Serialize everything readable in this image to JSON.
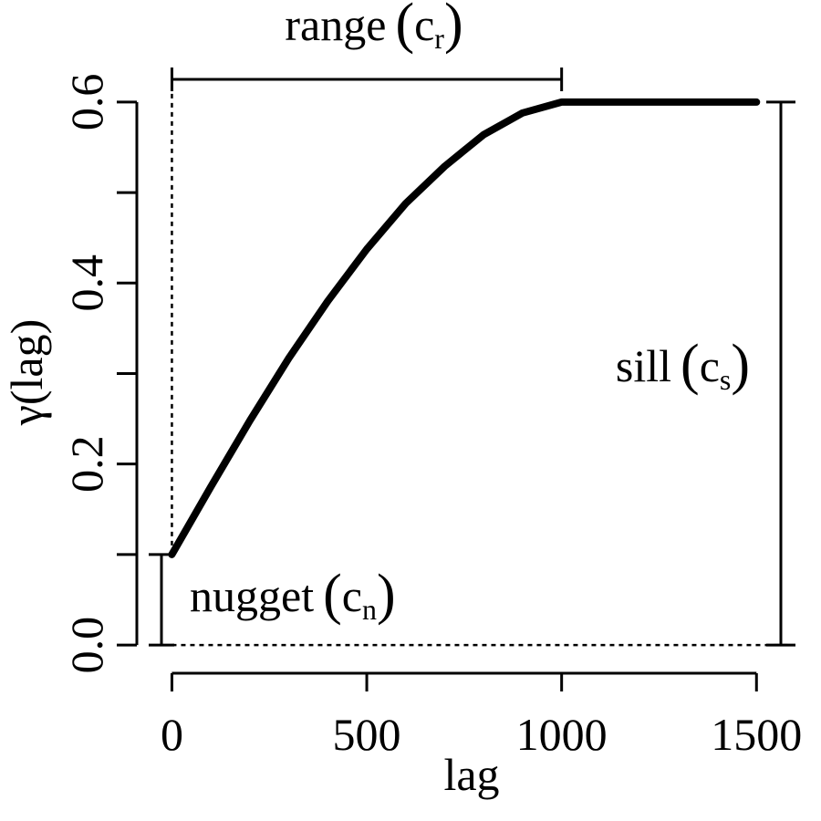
{
  "chart_data": {
    "type": "line",
    "xlabel": "lag",
    "ylabel": "γ(lag)",
    "xlim": [
      -90,
      1600
    ],
    "ylim": [
      -0.01,
      0.615
    ],
    "x_ticks": [
      0,
      500,
      1000,
      1500
    ],
    "x_tick_labels": [
      "0",
      "500",
      "1000",
      "1500"
    ],
    "y_ticks": [
      0.0,
      0.2,
      0.4,
      0.6
    ],
    "y_tick_labels": [
      "0.0",
      "0.2",
      "0.4",
      "0.6"
    ],
    "y_minor_ticks": [
      0.1,
      0.3,
      0.5
    ],
    "grid": false,
    "model": {
      "nugget": 0.1,
      "sill": 0.6,
      "range": 1000,
      "lag_max": 1500
    },
    "series": [
      {
        "x": [
          0,
          100,
          200,
          300,
          400,
          500,
          600,
          700,
          800,
          900,
          1000,
          1100,
          1200,
          1300,
          1400,
          1500
        ],
        "y": [
          0.1,
          0.175,
          0.248,
          0.317,
          0.38,
          0.4375,
          0.488,
          0.529,
          0.564,
          0.588,
          0.6,
          0.6,
          0.6,
          0.6,
          0.6,
          0.6
        ],
        "color": "#000000"
      }
    ],
    "annotations": {
      "range": {
        "text": "range",
        "subscript": "r"
      },
      "nugget": {
        "text": "nugget",
        "subscript": "n"
      },
      "sill": {
        "text": "sill",
        "subscript": "s"
      },
      "symbol": "c"
    }
  }
}
